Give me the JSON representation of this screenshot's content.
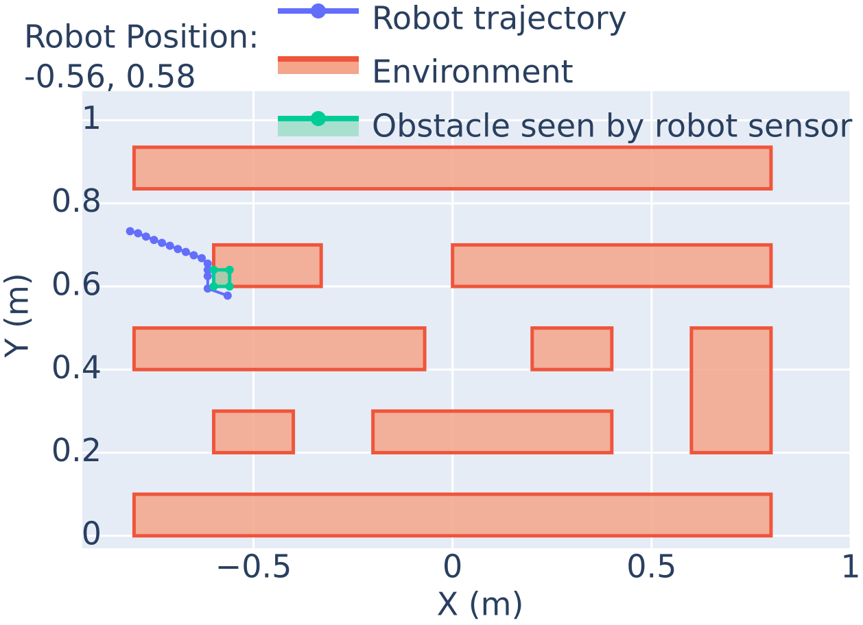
{
  "chart_data": {
    "type": "scatter",
    "annotation": [
      "Robot Position:",
      "-0.56, 0.58"
    ],
    "xlabel": "X (m)",
    "ylabel": "Y (m)",
    "xlim": [
      -0.93,
      1
    ],
    "ylim": [
      -0.03,
      1.07
    ],
    "xticks": [
      {
        "value": -0.5,
        "label": "−0.5"
      },
      0,
      0.5,
      1
    ],
    "yticks": [
      0,
      0.2,
      0.4,
      0.6,
      0.8,
      1
    ],
    "grid": true,
    "series": [
      {
        "name": "Robot trajectory",
        "color": "#636efa",
        "mode": "lines+markers",
        "x": [
          -0.81,
          -0.79,
          -0.77,
          -0.75,
          -0.73,
          -0.71,
          -0.69,
          -0.67,
          -0.65,
          -0.63,
          -0.615,
          -0.615,
          -0.615,
          -0.615,
          -0.565
        ],
        "y": [
          0.733,
          0.728,
          0.72,
          0.712,
          0.705,
          0.698,
          0.69,
          0.683,
          0.675,
          0.668,
          0.655,
          0.64,
          0.625,
          0.595,
          0.578
        ]
      },
      {
        "name": "Environment",
        "color": "#ef553b",
        "fill": "#f4a58a",
        "mode": "rects",
        "rects": [
          {
            "x0": -0.8,
            "x1": 0.8,
            "y0": 0.835,
            "y1": 0.935
          },
          {
            "x0": -0.6,
            "x1": -0.33,
            "y0": 0.6,
            "y1": 0.7
          },
          {
            "x0": 0,
            "x1": 0.8,
            "y0": 0.6,
            "y1": 0.7
          },
          {
            "x0": -0.8,
            "x1": -0.07,
            "y0": 0.4,
            "y1": 0.5
          },
          {
            "x0": 0.2,
            "x1": 0.4,
            "y0": 0.4,
            "y1": 0.5
          },
          {
            "x0": 0.6,
            "x1": 0.8,
            "y0": 0.2,
            "y1": 0.5
          },
          {
            "x0": -0.6,
            "x1": -0.4,
            "y0": 0.2,
            "y1": 0.3
          },
          {
            "x0": -0.2,
            "x1": 0.4,
            "y0": 0.2,
            "y1": 0.3
          },
          {
            "x0": -0.8,
            "x1": 0.8,
            "y0": 0,
            "y1": 0.1
          }
        ]
      },
      {
        "name": "Obstacle seen by robot sensor",
        "color": "#00cc96",
        "fill": "#7fd8b6",
        "mode": "lines+markers+fill",
        "x": [
          -0.6,
          -0.6,
          -0.56,
          -0.56,
          -0.6
        ],
        "y": [
          0.6,
          0.64,
          0.64,
          0.6,
          0.6
        ]
      }
    ]
  }
}
